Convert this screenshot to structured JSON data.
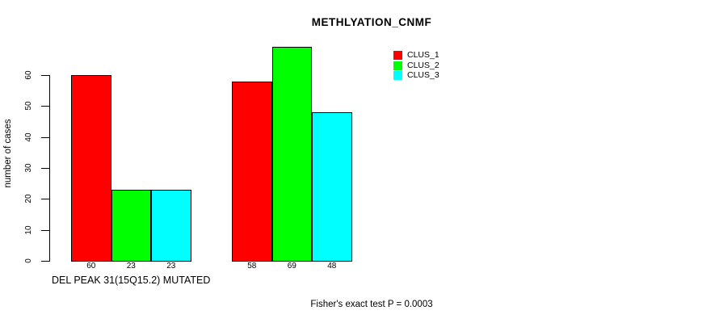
{
  "figure": {
    "title": "METHLYATION_CNMF",
    "footnote": "Fisher's exact test P = 0.0003"
  },
  "chart_data": {
    "type": "bar",
    "title": "METHLYATION_CNMF",
    "ylabel": "number of cases",
    "xlabel": "DEL PEAK 31(15Q15.2) MUTATED",
    "group_labels": [
      "DEL PEAK 31(15Q15.2) MUTATED",
      ""
    ],
    "series": [
      {
        "name": "CLUS_1",
        "color": "#ff0000",
        "values": [
          60,
          58
        ]
      },
      {
        "name": "CLUS_2",
        "color": "#00ff00",
        "values": [
          23,
          69
        ]
      },
      {
        "name": "CLUS_3",
        "color": "#00ffff",
        "values": [
          23,
          48
        ]
      }
    ],
    "bar_value_labels": [
      [
        60,
        23,
        23
      ],
      [
        58,
        69,
        48
      ]
    ],
    "yticks": [
      0,
      10,
      20,
      30,
      40,
      50,
      60
    ],
    "ylim": [
      0,
      60
    ],
    "grid": false,
    "legend_position": "top-right",
    "legend_entries": [
      "CLUS_1",
      "CLUS_2",
      "CLUS_3"
    ],
    "annotation": "Fisher's exact test P = 0.0003",
    "axis_color": "#000000",
    "background_color": "#ffffff"
  }
}
